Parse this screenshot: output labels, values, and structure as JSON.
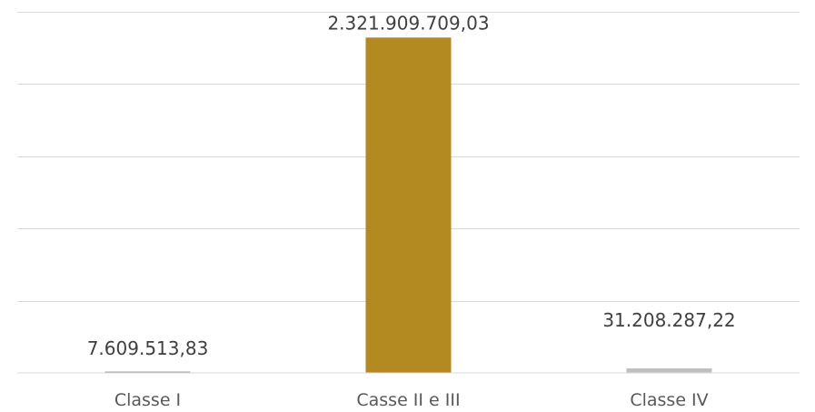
{
  "chart_data": {
    "type": "bar",
    "title": "",
    "xlabel": "",
    "ylabel": "",
    "categories": [
      "Classe I",
      "Casse II e III",
      "Classe IV"
    ],
    "values": [
      7609513.83,
      2321909709.03,
      31208287.22
    ],
    "data_labels": [
      "7.609.513,83",
      "2.321.909.709,03",
      "31.208.287,22"
    ],
    "colors": [
      "#a6a6a6",
      "#b38a22",
      "#bfbfbf"
    ],
    "ylim": [
      0,
      2500000000
    ],
    "y_tick_labels_shown": false,
    "grid": true,
    "legend": "none"
  }
}
